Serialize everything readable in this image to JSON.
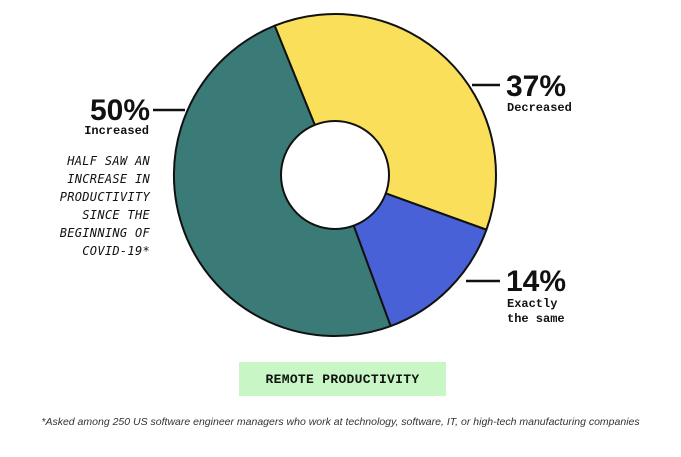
{
  "chart_data": {
    "type": "pie",
    "variant": "donut",
    "slices": [
      {
        "category": "Decreased",
        "category_lines": [
          "Decreased"
        ],
        "value": 37,
        "display": "37%",
        "color": "#f9df5a"
      },
      {
        "category": "Exactly the same",
        "category_lines": [
          "Exactly",
          "the same"
        ],
        "value": 14,
        "display": "14%",
        "color": "#4961d6"
      },
      {
        "category": "Increased",
        "category_lines": [
          "Increased"
        ],
        "value": 50,
        "display": "50%",
        "color": "#3a7b78"
      }
    ],
    "annotation_lines": [
      "HALF SAW AN",
      "INCREASE IN",
      "PRODUCTIVITY",
      "SINCE THE",
      "BEGINNING OF",
      "COVID-19*"
    ],
    "title": "REMOTE PRODUCTIVITY"
  },
  "footnote": "*Asked among 250 US software engineer managers who work at technology, software, IT, or high-tech manufacturing companies"
}
